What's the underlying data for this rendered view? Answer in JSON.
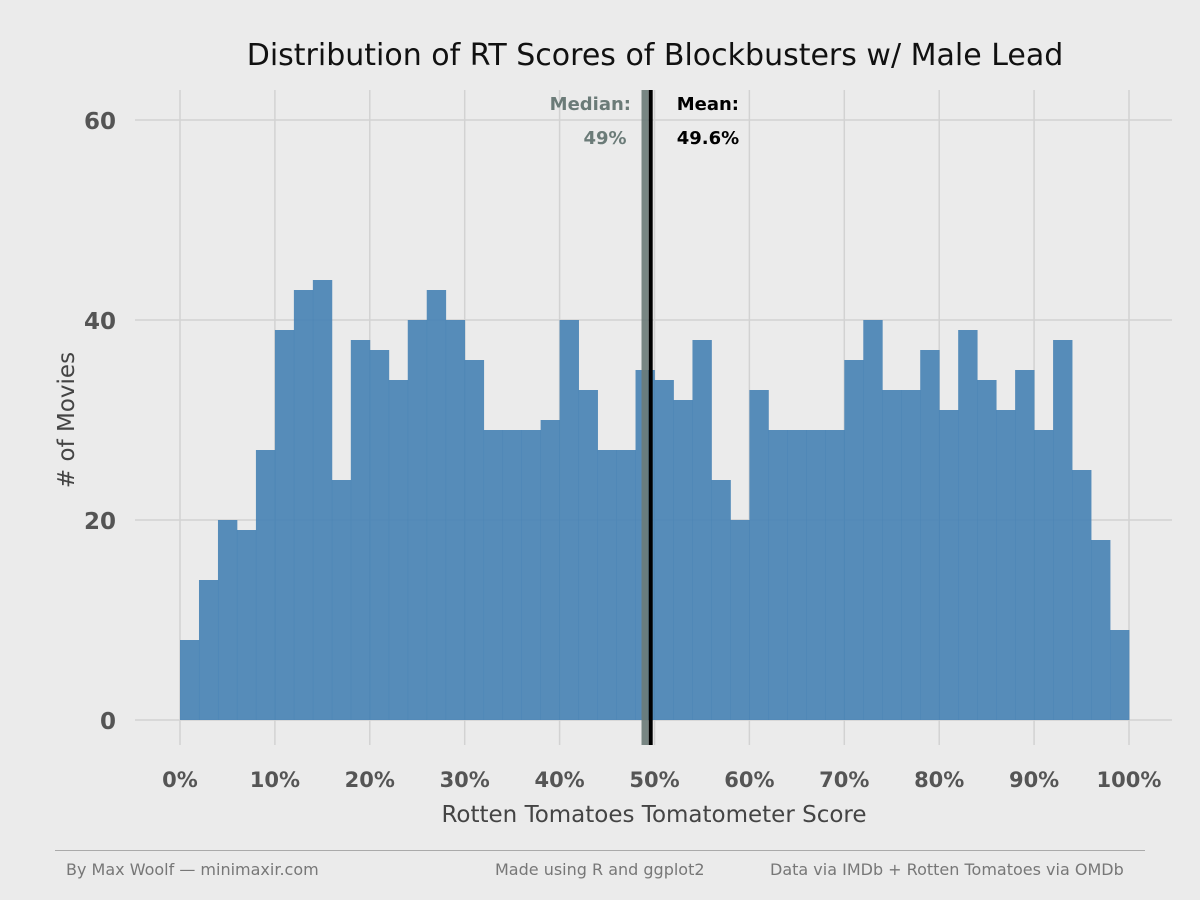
{
  "chart_data": {
    "type": "bar",
    "title": "Distribution of RT Scores of Blockbusters w/ Male Lead",
    "xlabel": "Rotten Tomatoes Tomatometer Score",
    "ylabel": "# of Movies",
    "xlim": [
      0,
      100
    ],
    "ylim": [
      0,
      60
    ],
    "x_ticks": [
      "0%",
      "10%",
      "20%",
      "30%",
      "40%",
      "50%",
      "60%",
      "70%",
      "80%",
      "90%",
      "100%"
    ],
    "y_ticks": [
      "0",
      "20",
      "40",
      "60"
    ],
    "bin_width": 2,
    "bin_starts": [
      0,
      2,
      4,
      6,
      8,
      10,
      12,
      14,
      16,
      18,
      20,
      22,
      24,
      26,
      28,
      30,
      32,
      34,
      36,
      38,
      40,
      42,
      44,
      46,
      48,
      50,
      52,
      54,
      56,
      58,
      60,
      62,
      64,
      66,
      68,
      70,
      72,
      74,
      76,
      78,
      80,
      82,
      84,
      86,
      88,
      90,
      92,
      94,
      96,
      98
    ],
    "values": [
      8,
      14,
      20,
      19,
      27,
      39,
      43,
      44,
      24,
      38,
      37,
      34,
      40,
      43,
      40,
      36,
      29,
      29,
      29,
      30,
      40,
      33,
      27,
      27,
      35,
      34,
      32,
      38,
      24,
      20,
      33,
      29,
      29,
      29,
      29,
      36,
      40,
      33,
      33,
      37,
      31,
      39,
      34,
      31,
      35,
      29,
      38,
      25,
      18,
      9
    ],
    "bar_color": "#4682b4",
    "grid": true,
    "reference_lines": [
      {
        "label": "Median:",
        "value_label": "49%",
        "x": 49,
        "color": "#6b7b78"
      },
      {
        "label": "Mean:",
        "value_label": "49.6%",
        "x": 49.6,
        "color": "#000000"
      }
    ]
  },
  "footer": {
    "left": "By Max Woolf — minimaxir.com",
    "center": "Made using R and ggplot2",
    "right": "Data via IMDb + Rotten Tomatoes via OMDb"
  }
}
